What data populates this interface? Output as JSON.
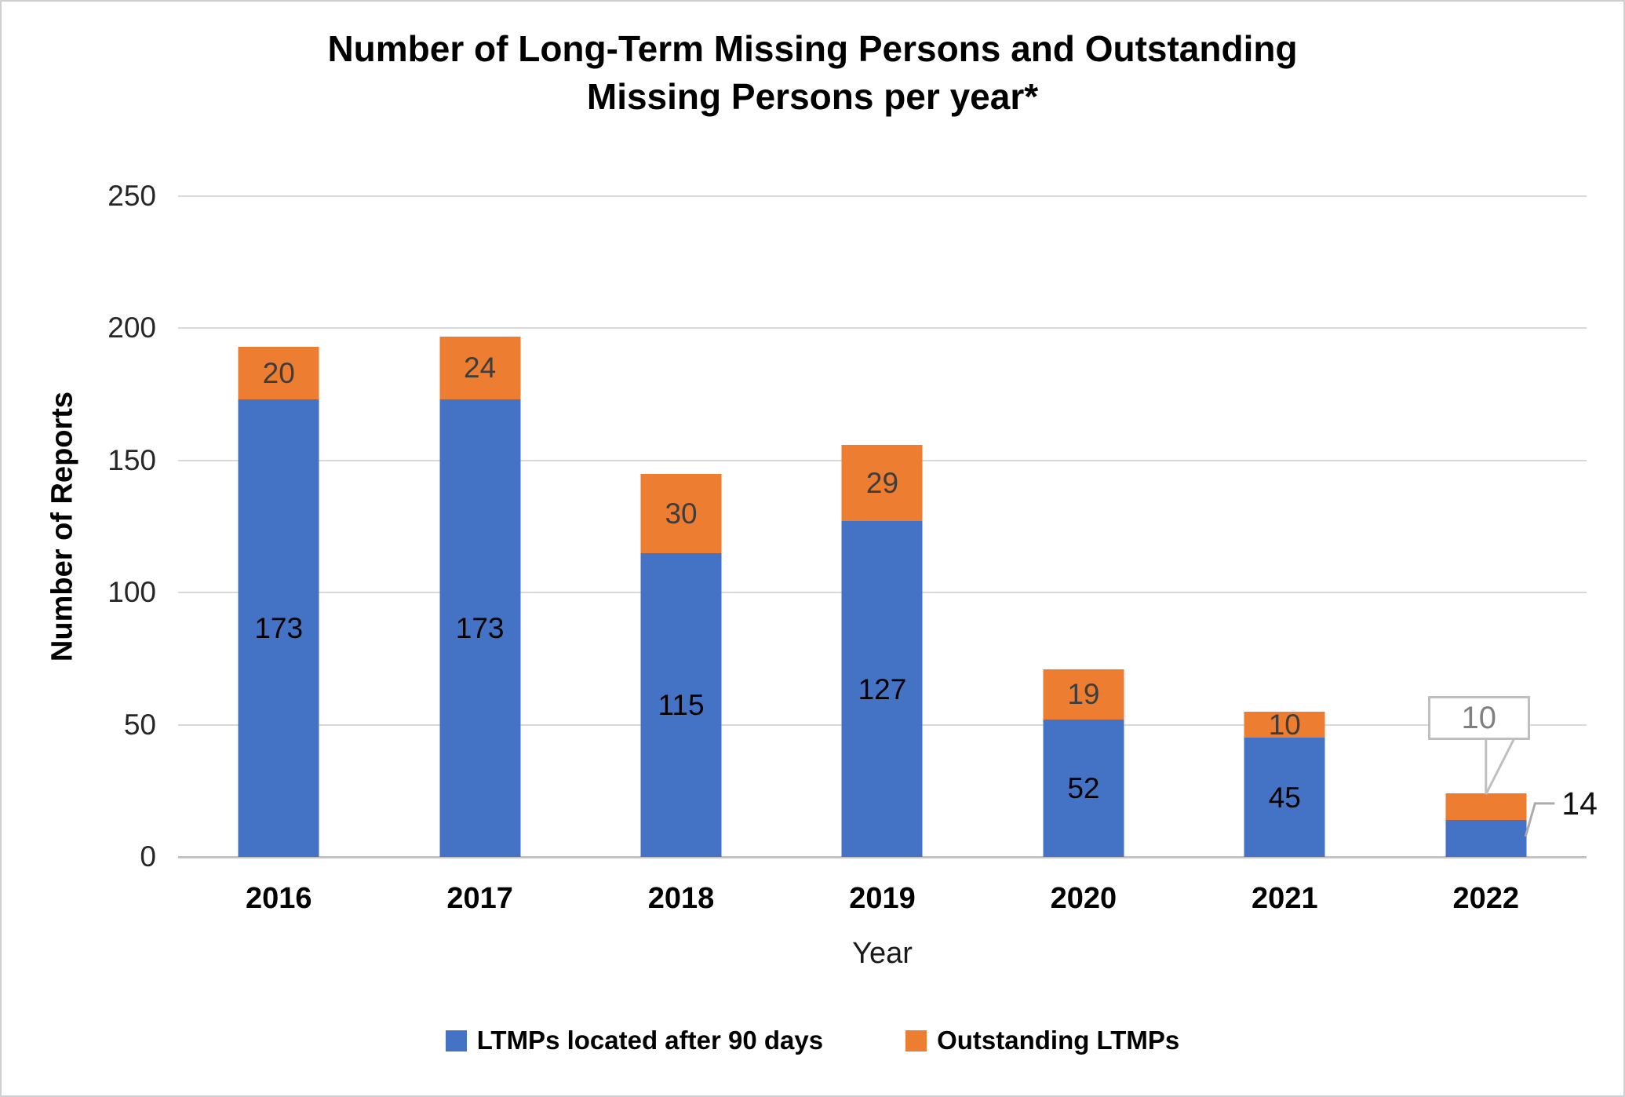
{
  "chart_data": {
    "type": "bar",
    "stacked": true,
    "title_lines": [
      "Number of Long-Term Missing Persons and Outstanding",
      "Missing Persons per year*"
    ],
    "xlabel": "Year",
    "ylabel": "Number of Reports",
    "ylim": [
      0,
      250
    ],
    "ytick_step": 50,
    "grid": true,
    "legend_position": "bottom",
    "categories": [
      "2016",
      "2017",
      "2018",
      "2019",
      "2020",
      "2021",
      "2022"
    ],
    "series": [
      {
        "name": "LTMPs located after 90 days",
        "color": "#4472C4",
        "label_color": "#000000",
        "values": [
          173,
          173,
          115,
          127,
          52,
          45,
          14
        ]
      },
      {
        "name": "Outstanding LTMPs",
        "color": "#ED7D31",
        "label_color": "#3d3d3d",
        "values": [
          20,
          24,
          30,
          29,
          19,
          10,
          10
        ]
      }
    ],
    "annotations": {
      "callout": {
        "text": "10",
        "category": "2022",
        "series": "Outstanding LTMPs"
      },
      "leader": {
        "text": "14",
        "category": "2022",
        "series": "LTMPs located after 90 days"
      }
    }
  }
}
